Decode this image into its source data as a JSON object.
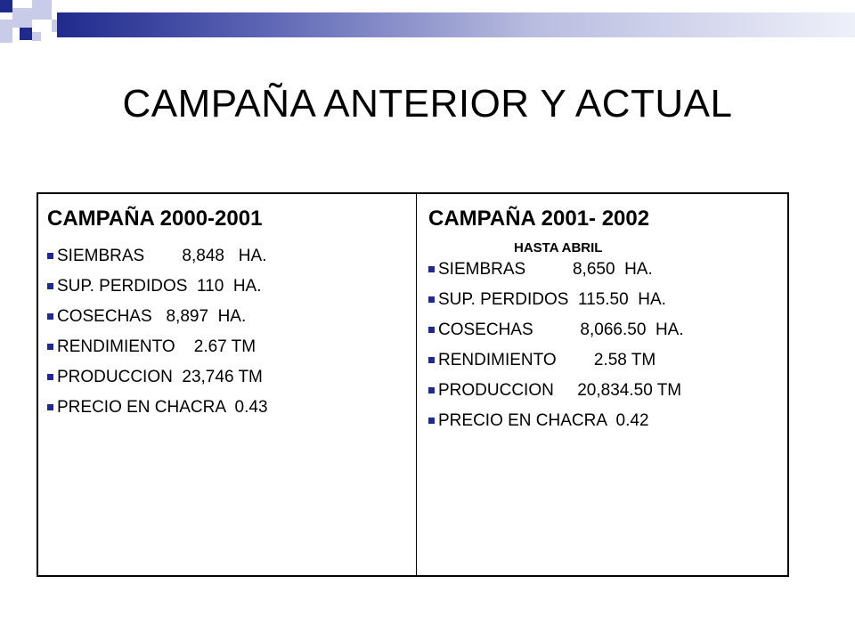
{
  "slide": {
    "title": "CAMPAÑA ANTERIOR Y ACTUAL",
    "accent_color": "#1f2a8c"
  },
  "table": {
    "left": {
      "heading": "CAMPAÑA 2000-2001",
      "items": [
        "SIEMBRAS        8,848   HA.",
        "SUP. PERDIDOS  110  HA.",
        "COSECHAS   8,897  HA.",
        "RENDIMIENTO    2.67 TM",
        "PRODUCCION  23,746 TM",
        "PRECIO EN CHACRA  0.43"
      ]
    },
    "right": {
      "heading": "CAMPAÑA 2001- 2002",
      "subheading": "HASTA ABRIL",
      "items": [
        "SIEMBRAS          8,650  HA.",
        "SUP. PERDIDOS  115.50  HA.",
        "COSECHAS          8,066.50  HA.",
        "RENDIMIENTO        2.58 TM",
        "PRODUCCION     20,834.50 TM",
        "PRECIO EN CHACRA  0.42"
      ]
    }
  }
}
